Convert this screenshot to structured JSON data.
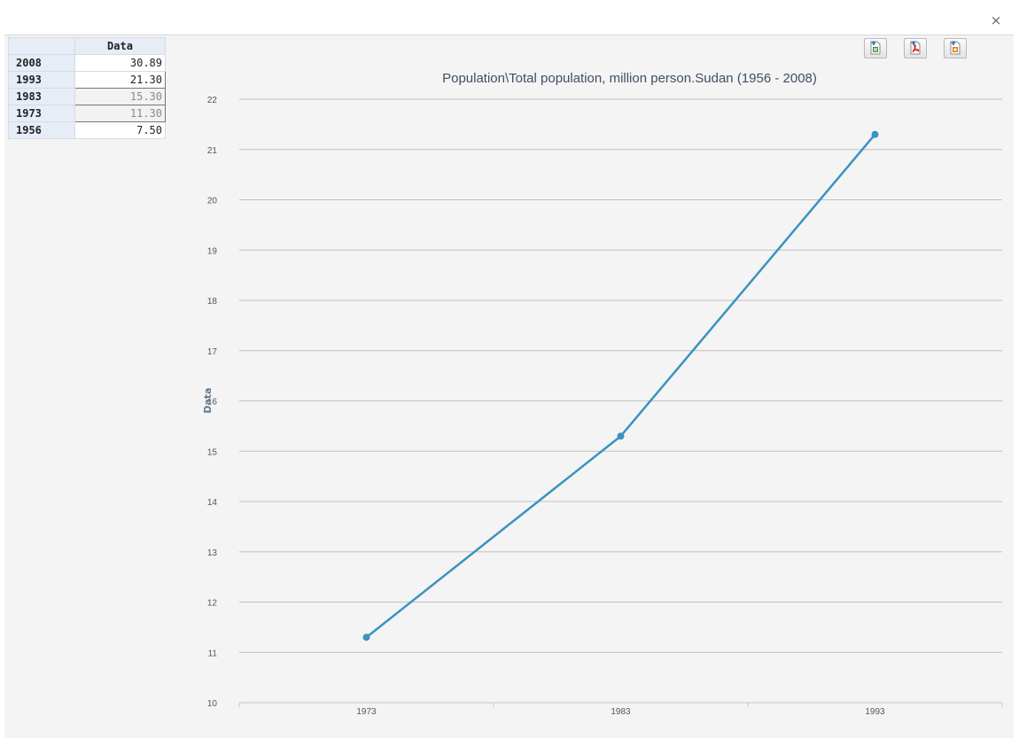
{
  "window": {
    "close_label": "×"
  },
  "toolbar": {
    "buttons": [
      {
        "name": "export-excel-button",
        "icon": "excel-export-icon",
        "color": "#2e8b3a"
      },
      {
        "name": "export-pdf-button",
        "icon": "pdf-export-icon",
        "color": "#d42020"
      },
      {
        "name": "export-image-button",
        "icon": "image-export-icon",
        "color": "#e07b1a"
      }
    ]
  },
  "table": {
    "column_header": "Data",
    "rows": [
      {
        "year": "2008",
        "value": "30.89"
      },
      {
        "year": "1993",
        "value": "21.30"
      },
      {
        "year": "1983",
        "value": "15.30"
      },
      {
        "year": "1973",
        "value": "11.30"
      },
      {
        "year": "1956",
        "value": "7.50"
      }
    ]
  },
  "chart_data": {
    "type": "line",
    "title": "Population\\Total population, million person.Sudan (1956 - 2008)",
    "xlabel": "",
    "ylabel": "Data",
    "categories": [
      "1973",
      "1983",
      "1993"
    ],
    "series": [
      {
        "values": [
          11.3,
          15.3,
          21.3
        ],
        "color": "#3a93c0"
      }
    ],
    "ylim": [
      10,
      22
    ],
    "yticks": [
      10,
      11,
      12,
      13,
      14,
      15,
      16,
      17,
      18,
      19,
      20,
      21,
      22
    ],
    "grid": true,
    "legend": "none"
  }
}
